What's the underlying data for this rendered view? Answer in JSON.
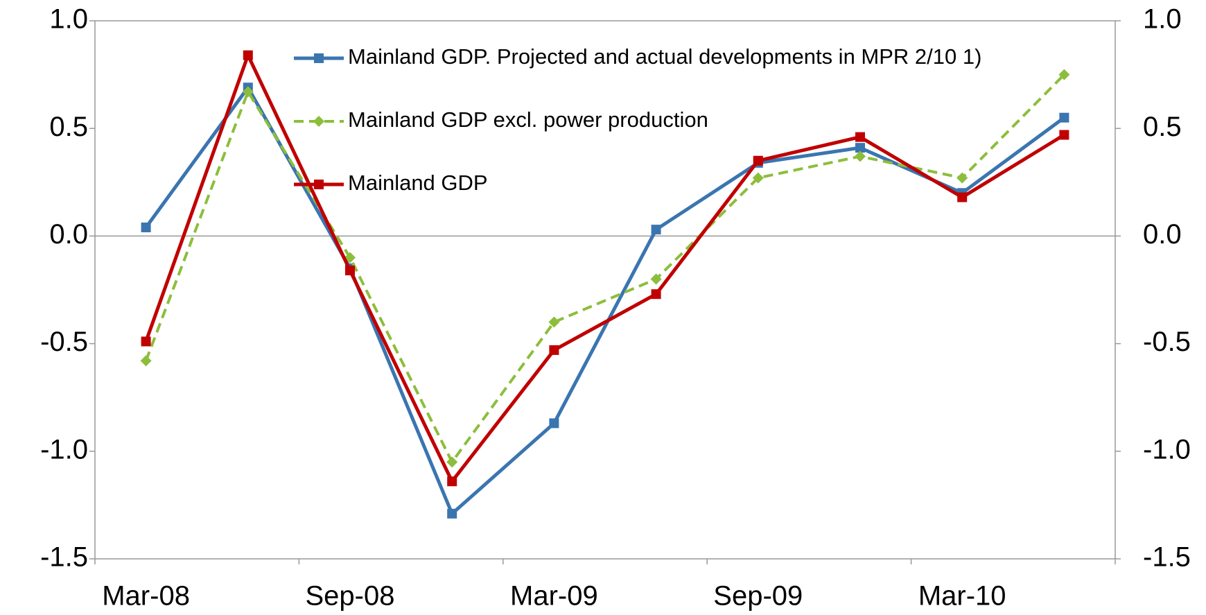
{
  "chart_data": {
    "type": "line",
    "categories": [
      "Mar-08",
      null,
      "Sep-08",
      null,
      "Mar-09",
      null,
      "Sep-09",
      null,
      "Mar-10",
      null
    ],
    "series": [
      {
        "name": "Mainland GDP. Projected and actual developments in MPR 2/10 1)",
        "color": "#3a75b0",
        "marker": "square",
        "dash": false,
        "values": [
          0.04,
          0.69,
          -0.15,
          -1.29,
          -0.87,
          0.03,
          0.34,
          0.41,
          0.2,
          0.55
        ]
      },
      {
        "name": "Mainland GDP excl. power production",
        "color": "#8cbe3c",
        "marker": "diamond",
        "dash": true,
        "values": [
          -0.58,
          0.67,
          -0.1,
          -1.05,
          -0.4,
          -0.2,
          0.27,
          0.37,
          0.27,
          0.75
        ]
      },
      {
        "name": "Mainland GDP",
        "color": "#c00000",
        "marker": "square",
        "dash": false,
        "values": [
          -0.49,
          0.84,
          -0.16,
          -1.14,
          -0.53,
          -0.27,
          0.35,
          0.46,
          0.18,
          0.47
        ]
      }
    ],
    "ylim": [
      -1.5,
      1.0
    ],
    "yticks": [
      {
        "value": -1.5,
        "label": "-1.5"
      },
      {
        "value": -1,
        "label": "-1.0"
      },
      -0.5,
      {
        "value": 0,
        "label": "0.0"
      },
      0.5,
      {
        "value": 1,
        "label": "1.0"
      }
    ],
    "y2lim": [
      -1.5,
      1.0
    ],
    "y2ticks": [
      {
        "value": -1.5,
        "label": "-1.5"
      },
      {
        "value": -1,
        "label": "-1.0"
      },
      -0.5,
      {
        "value": 0,
        "label": "0.0"
      },
      0.5,
      {
        "value": 1,
        "label": "1.0"
      }
    ],
    "grid": false,
    "legend": "top"
  }
}
